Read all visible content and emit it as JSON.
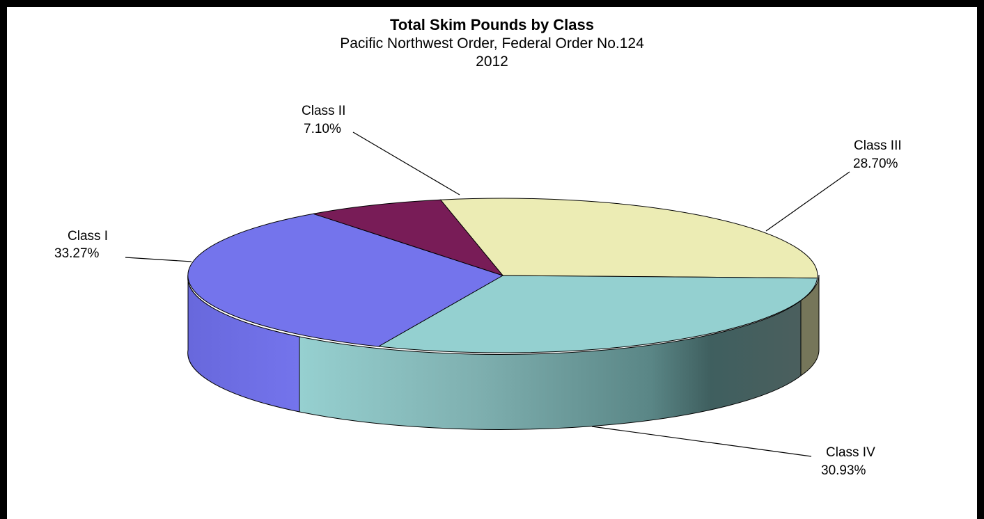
{
  "chart_data": {
    "type": "pie",
    "title": "Total Skim Pounds by Class",
    "subtitle": "Pacific Northwest Order, Federal Order No.124",
    "subtitle2": "2012",
    "slices": [
      {
        "label": "Class I",
        "value": 33.27,
        "value_label": "33.27%",
        "color": "#7474ec"
      },
      {
        "label": "Class II",
        "value": 7.1,
        "value_label": "7.10%",
        "color": "#781c57"
      },
      {
        "label": "Class III",
        "value": 28.7,
        "value_label": "28.70%",
        "color": "#ececb4"
      },
      {
        "label": "Class IV",
        "value": 30.93,
        "value_label": "30.93%",
        "color": "#94d0d0"
      }
    ],
    "legend": "none",
    "style": "3d-perspective"
  }
}
